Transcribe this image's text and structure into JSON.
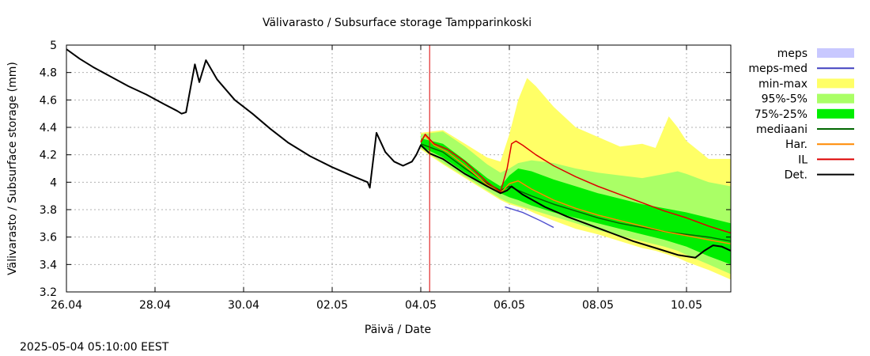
{
  "chart_data": {
    "type": "line",
    "title": "Välivarasto / Subsurface storage  Tampparinkoski",
    "xlabel": "Päivä / Date",
    "ylabel": "Välivarasto / Subsurface storage (mm)",
    "timestamp": "2025-05-04 05:10:00 EEST",
    "grid": true,
    "legend_position": "right",
    "xlim": [
      0,
      15
    ],
    "ylim": [
      3.2,
      5.0
    ],
    "forecast_start_x": 8.2,
    "x_ticks": [
      {
        "x": 0,
        "label": "26.04"
      },
      {
        "x": 2,
        "label": "28.04"
      },
      {
        "x": 4,
        "label": "30.04"
      },
      {
        "x": 6,
        "label": "02.05"
      },
      {
        "x": 8,
        "label": "04.05"
      },
      {
        "x": 10,
        "label": "06.05"
      },
      {
        "x": 12,
        "label": "08.05"
      },
      {
        "x": 14,
        "label": "10.05"
      }
    ],
    "y_ticks": [
      3.2,
      3.4,
      3.6,
      3.8,
      4.0,
      4.2,
      4.4,
      4.6,
      4.8,
      5.0
    ],
    "y_tick_labels": [
      "3.2",
      "3.4",
      "3.6",
      "3.8",
      "4",
      "4.2",
      "4.4",
      "4.6",
      "4.8",
      "5"
    ],
    "legend": [
      {
        "label": "meps",
        "style": "band",
        "color": "#c8c8ff"
      },
      {
        "label": "meps-med",
        "style": "line",
        "color": "#4040c0"
      },
      {
        "label": "min-max",
        "style": "band",
        "color": "#ffff66"
      },
      {
        "label": "95%-5%",
        "style": "band",
        "color": "#aaff66"
      },
      {
        "label": "75%-25%",
        "style": "band",
        "color": "#00ee00"
      },
      {
        "label": "mediaani",
        "style": "line",
        "color": "#006600"
      },
      {
        "label": "Har.",
        "style": "line",
        "color": "#ff8800"
      },
      {
        "label": "IL",
        "style": "line",
        "color": "#dd0000"
      },
      {
        "label": "Det.",
        "style": "line",
        "color": "#000000"
      }
    ],
    "bands": [
      {
        "name": "min-max",
        "color": "#ffff66",
        "x": [
          8.0,
          8.5,
          9.0,
          9.5,
          9.8,
          10.0,
          10.2,
          10.4,
          10.6,
          11.0,
          11.5,
          12.0,
          12.5,
          13.0,
          13.3,
          13.6,
          13.8,
          14.0,
          14.5,
          15.0
        ],
        "upper": [
          4.36,
          4.38,
          4.28,
          4.18,
          4.15,
          4.35,
          4.6,
          4.76,
          4.7,
          4.55,
          4.4,
          4.33,
          4.26,
          4.28,
          4.25,
          4.48,
          4.4,
          4.3,
          4.17,
          4.17
        ],
        "lower": [
          4.24,
          4.13,
          4.03,
          3.93,
          3.87,
          3.84,
          3.82,
          3.8,
          3.77,
          3.72,
          3.66,
          3.62,
          3.57,
          3.52,
          3.5,
          3.47,
          3.45,
          3.42,
          3.36,
          3.29
        ]
      },
      {
        "name": "95%-5%",
        "color": "#aaff66",
        "x": [
          8.0,
          8.5,
          9.0,
          9.5,
          9.8,
          10.0,
          10.2,
          10.5,
          11.0,
          11.5,
          12.0,
          12.5,
          13.0,
          13.5,
          13.8,
          14.0,
          14.5,
          15.0
        ],
        "upper": [
          4.35,
          4.37,
          4.26,
          4.13,
          4.07,
          4.1,
          4.14,
          4.16,
          4.14,
          4.1,
          4.07,
          4.05,
          4.03,
          4.06,
          4.08,
          4.06,
          4.0,
          3.97
        ],
        "lower": [
          4.25,
          4.14,
          4.04,
          3.94,
          3.88,
          3.85,
          3.83,
          3.8,
          3.75,
          3.7,
          3.65,
          3.61,
          3.57,
          3.53,
          3.5,
          3.47,
          3.4,
          3.33
        ]
      },
      {
        "name": "75%-25%",
        "color": "#00ee00",
        "x": [
          8.0,
          8.5,
          9.0,
          9.5,
          9.8,
          10.0,
          10.2,
          10.5,
          11.0,
          11.5,
          12.0,
          12.5,
          13.0,
          13.5,
          14.0,
          14.5,
          15.0
        ],
        "upper": [
          4.32,
          4.28,
          4.16,
          4.03,
          3.97,
          4.05,
          4.1,
          4.08,
          4.02,
          3.97,
          3.92,
          3.88,
          3.84,
          3.81,
          3.78,
          3.74,
          3.7
        ],
        "lower": [
          4.26,
          4.18,
          4.07,
          3.97,
          3.92,
          3.89,
          3.87,
          3.83,
          3.78,
          3.74,
          3.7,
          3.66,
          3.62,
          3.58,
          3.53,
          3.46,
          3.4
        ]
      }
    ],
    "series": [
      {
        "name": "meps",
        "color": "#c8c8ff",
        "width": 2,
        "x": [
          9.9,
          10.3,
          10.7,
          11.0
        ],
        "y": [
          3.82,
          3.78,
          3.72,
          3.67
        ]
      },
      {
        "name": "meps-med",
        "color": "#4040c0",
        "width": 1,
        "x": [
          9.9,
          10.3,
          10.7,
          11.0
        ],
        "y": [
          3.82,
          3.78,
          3.72,
          3.67
        ]
      },
      {
        "name": "mediaani",
        "color": "#006600",
        "width": 1.5,
        "x": [
          8.0,
          8.5,
          9.0,
          9.5,
          9.8,
          10.0,
          10.2,
          10.5,
          11.0,
          11.5,
          12.0,
          12.5,
          13.0,
          13.5,
          14.0,
          14.5,
          15.0
        ],
        "y": [
          4.28,
          4.22,
          4.1,
          3.99,
          3.94,
          3.97,
          3.94,
          3.9,
          3.84,
          3.79,
          3.74,
          3.7,
          3.67,
          3.64,
          3.62,
          3.6,
          3.57
        ]
      },
      {
        "name": "Har.",
        "color": "#ff8800",
        "width": 1.5,
        "x": [
          8.0,
          8.1,
          8.3,
          8.6,
          9.0,
          9.5,
          9.8,
          10.0,
          10.2,
          10.5,
          11.0,
          11.5,
          12.0,
          12.5,
          13.0,
          13.5,
          14.0,
          14.5,
          15.0
        ],
        "y": [
          4.3,
          4.34,
          4.27,
          4.22,
          4.12,
          3.98,
          3.92,
          3.99,
          4.01,
          3.95,
          3.87,
          3.81,
          3.76,
          3.72,
          3.68,
          3.64,
          3.61,
          3.58,
          3.55
        ]
      },
      {
        "name": "IL",
        "color": "#dd0000",
        "width": 1.5,
        "x": [
          8.0,
          8.1,
          8.3,
          8.6,
          9.0,
          9.5,
          9.8,
          9.95,
          10.05,
          10.15,
          10.3,
          10.6,
          11.0,
          11.5,
          12.0,
          12.5,
          13.0,
          13.5,
          14.0,
          14.5,
          15.0
        ],
        "y": [
          4.29,
          4.35,
          4.28,
          4.24,
          4.15,
          4.0,
          3.93,
          4.1,
          4.28,
          4.3,
          4.27,
          4.2,
          4.12,
          4.04,
          3.97,
          3.91,
          3.85,
          3.79,
          3.74,
          3.68,
          3.63
        ]
      },
      {
        "name": "Det.",
        "color": "#000000",
        "width": 2,
        "x": [
          0.0,
          0.3,
          0.6,
          1.0,
          1.4,
          1.8,
          2.2,
          2.5,
          2.6,
          2.7,
          2.9,
          3.0,
          3.15,
          3.4,
          3.8,
          4.2,
          4.6,
          5.0,
          5.5,
          6.0,
          6.5,
          6.8,
          6.85,
          7.0,
          7.2,
          7.4,
          7.6,
          7.8,
          7.9,
          8.0,
          8.2,
          8.5,
          9.0,
          9.5,
          9.8,
          9.95,
          10.05,
          10.3,
          10.8,
          11.3,
          11.8,
          12.3,
          12.8,
          13.3,
          13.8,
          14.2,
          14.4,
          14.6,
          14.8,
          15.0
        ],
        "y": [
          4.97,
          4.9,
          4.84,
          4.77,
          4.7,
          4.64,
          4.57,
          4.52,
          4.5,
          4.51,
          4.86,
          4.73,
          4.89,
          4.75,
          4.6,
          4.5,
          4.39,
          4.29,
          4.19,
          4.11,
          4.04,
          4.0,
          3.96,
          4.36,
          4.22,
          4.15,
          4.12,
          4.15,
          4.2,
          4.27,
          4.21,
          4.17,
          4.06,
          3.97,
          3.92,
          3.94,
          3.97,
          3.91,
          3.82,
          3.75,
          3.69,
          3.63,
          3.57,
          3.52,
          3.47,
          3.45,
          3.5,
          3.54,
          3.53,
          3.5
        ]
      }
    ]
  }
}
